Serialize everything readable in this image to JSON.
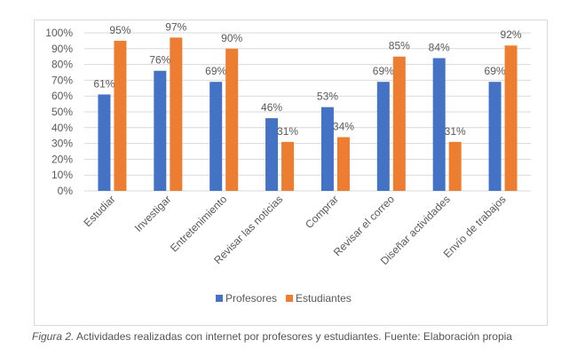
{
  "chart_data": {
    "type": "bar",
    "title": "",
    "xlabel": "",
    "ylabel": "",
    "categories": [
      "Estudiar",
      "Investigar",
      "Entretenimiento",
      "Revisar las noticias",
      "Comprar",
      "Revisar el correo",
      "Diseñar actividades",
      "Envío de trabajos"
    ],
    "series": [
      {
        "name": "Profesores",
        "color": "#4472c4",
        "values": [
          61,
          76,
          69,
          46,
          53,
          69,
          84,
          69
        ]
      },
      {
        "name": "Estudiantes",
        "color": "#ed7d31",
        "values": [
          95,
          97,
          90,
          31,
          34,
          85,
          31,
          92
        ]
      }
    ],
    "ylim": [
      0,
      100
    ],
    "yticks": [
      "0%",
      "10%",
      "20%",
      "30%",
      "40%",
      "50%",
      "60%",
      "70%",
      "80%",
      "90%",
      "100%"
    ],
    "value_suffix": "%",
    "grid": true,
    "legend": "bottom"
  },
  "caption": {
    "label": "Figura 2.",
    "text": " Actividades realizadas con internet por profesores y estudiantes. Fuente: Elaboración propia"
  }
}
